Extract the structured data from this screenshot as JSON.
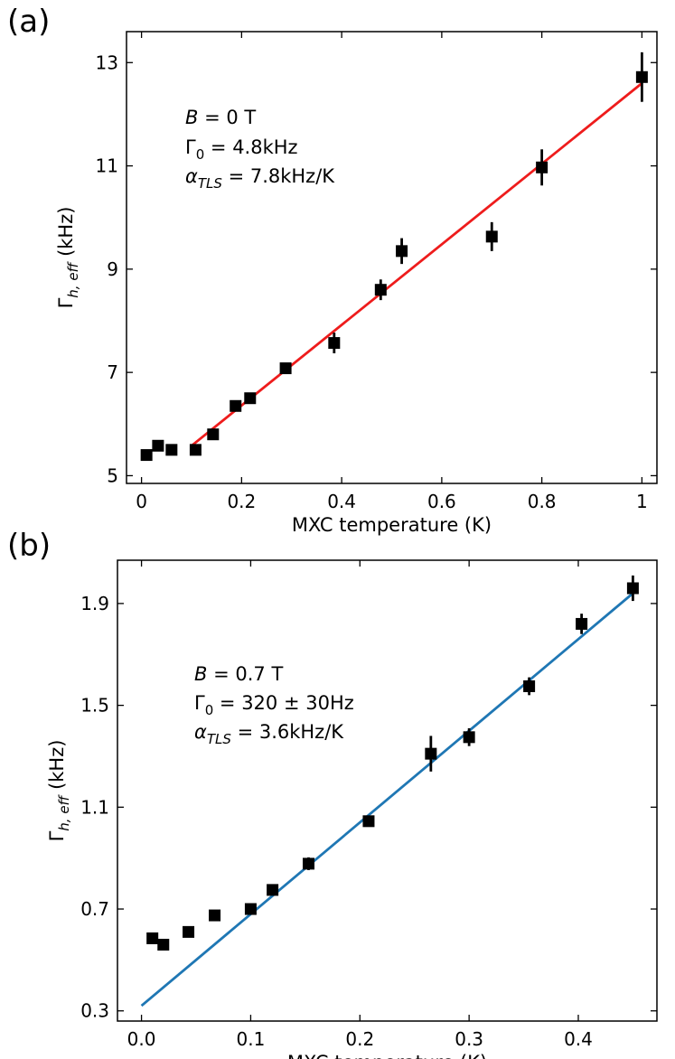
{
  "chart_data": [
    {
      "type": "scatter",
      "panel": "(a)",
      "xlabel": "MXC temperature (K)",
      "ylabel_main": "Γ",
      "ylabel_sub": "h, eff",
      "ylabel_unit": " (kHz)",
      "xlim": [
        -0.03,
        1.03
      ],
      "ylim": [
        4.85,
        13.6
      ],
      "xticks": [
        0,
        0.2,
        0.4,
        0.6,
        0.8,
        1
      ],
      "xtick_labels": [
        "0",
        "0.2",
        "0.4",
        "0.6",
        "0.8",
        "1"
      ],
      "yticks": [
        5,
        7,
        9,
        11,
        13
      ],
      "ytick_labels": [
        "5",
        "7",
        "9",
        "11",
        "13"
      ],
      "annotations": [
        {
          "sym": "B",
          "sub": "",
          "rest": " = 0 T"
        },
        {
          "sym": "Γ",
          "sub": "0",
          "rest": " = 4.8kHz"
        },
        {
          "sym": "α",
          "sub": "TLS",
          "rest": " = 7.8kHz/K"
        }
      ],
      "points": {
        "x": [
          0.01,
          0.033,
          0.06,
          0.108,
          0.143,
          0.188,
          0.217,
          0.288,
          0.385,
          0.478,
          0.52,
          0.7,
          0.8,
          1.0
        ],
        "y": [
          5.4,
          5.58,
          5.5,
          5.5,
          5.8,
          6.35,
          6.5,
          7.08,
          7.57,
          8.6,
          9.35,
          9.63,
          10.97,
          12.72
        ],
        "err": [
          0.05,
          0.05,
          0.05,
          0.05,
          0.06,
          0.1,
          0.08,
          0.1,
          0.2,
          0.2,
          0.25,
          0.28,
          0.35,
          0.48
        ]
      },
      "fit": {
        "x": [
          0.1,
          1.0
        ],
        "y": [
          5.58,
          12.6
        ],
        "color": "#ee1c1c"
      }
    },
    {
      "type": "scatter",
      "panel": "(b)",
      "xlabel": "MXC temperature (K)",
      "ylabel_main": "Γ",
      "ylabel_sub": "h, eff",
      "ylabel_unit": " (kHz)",
      "xlim": [
        -0.022,
        0.472
      ],
      "ylim": [
        0.26,
        2.07
      ],
      "xticks": [
        0.0,
        0.1,
        0.2,
        0.3,
        0.4
      ],
      "xtick_labels": [
        "0.0",
        "0.1",
        "0.2",
        "0.3",
        "0.4"
      ],
      "yticks": [
        0.3,
        0.7,
        1.1,
        1.5,
        1.9
      ],
      "ytick_labels": [
        "0.3",
        "0.7",
        "1.1",
        "1.5",
        "1.9"
      ],
      "annotations": [
        {
          "sym": "B",
          "sub": "",
          "rest": " = 0.7 T"
        },
        {
          "sym": "Γ",
          "sub": "0",
          "rest": " = 320 ± 30Hz"
        },
        {
          "sym": "α",
          "sub": "TLS",
          "rest": " = 3.6kHz/K"
        }
      ],
      "points": {
        "x": [
          0.01,
          0.02,
          0.043,
          0.067,
          0.1,
          0.12,
          0.153,
          0.208,
          0.265,
          0.3,
          0.355,
          0.403,
          0.45
        ],
        "y": [
          0.585,
          0.56,
          0.61,
          0.675,
          0.7,
          0.775,
          0.878,
          1.045,
          1.31,
          1.375,
          1.575,
          1.82,
          1.96
        ],
        "err": [
          0.02,
          0.02,
          0.02,
          0.02,
          0.02,
          0.02,
          0.025,
          0.02,
          0.07,
          0.035,
          0.035,
          0.04,
          0.05
        ]
      },
      "fit": {
        "x": [
          0.0,
          0.45
        ],
        "y": [
          0.32,
          1.94
        ],
        "color": "#1f77b4"
      }
    }
  ]
}
